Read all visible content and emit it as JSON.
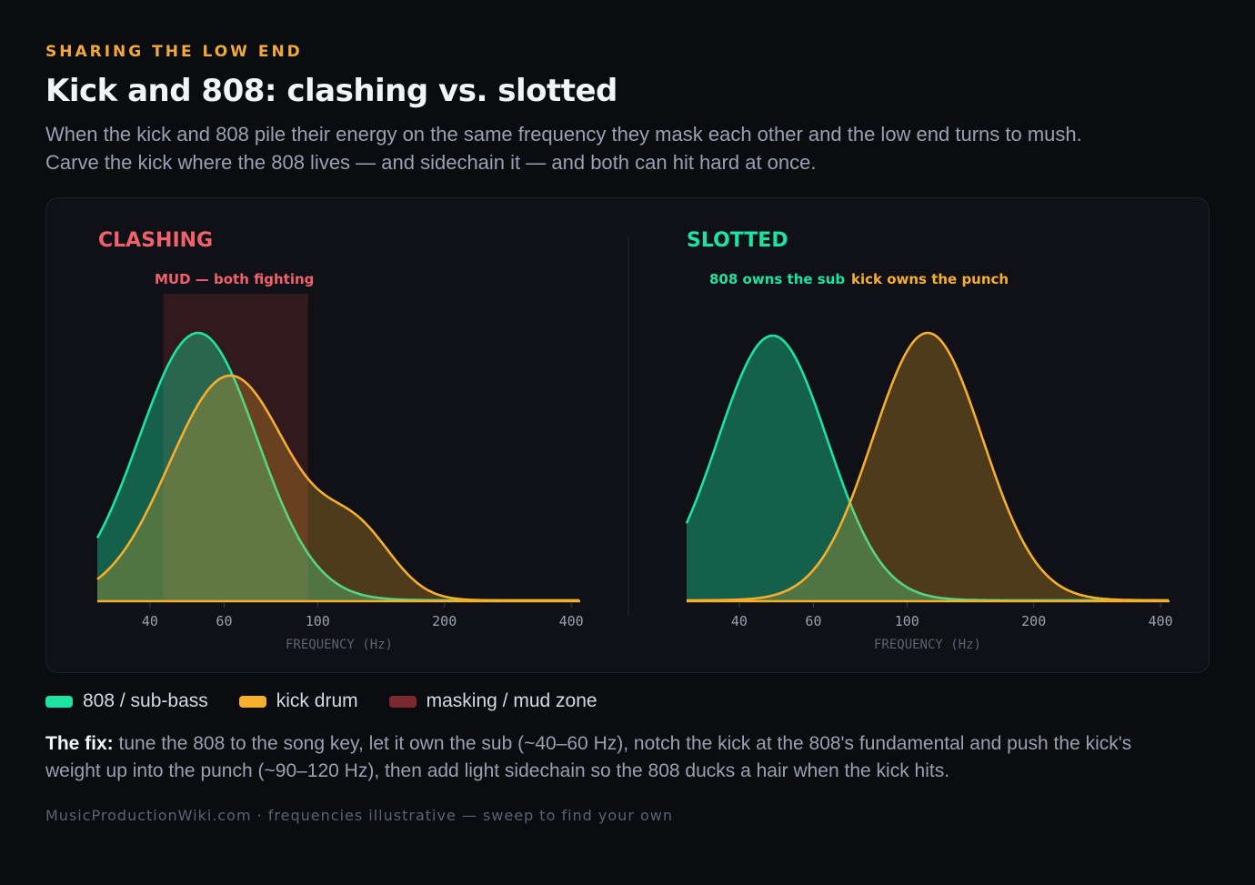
{
  "header": {
    "eyebrow": "SHARING THE LOW END",
    "title": "Kick and 808: clashing vs. slotted",
    "subtitle": "When the kick and 808 pile their energy on the same frequency they mask each other and the low end turns to mush. Carve the kick where the 808 lives — and sidechain it — and both can hit hard at once."
  },
  "colors": {
    "sub": "#1de3a0",
    "kick": "#f6ae2d",
    "mud": "#7a2a2e",
    "clash_heading": "#f0616b",
    "slot_heading": "#1de3a0"
  },
  "chart_data": [
    {
      "type": "area",
      "heading": "CLASHING",
      "annotations": [
        {
          "text": "MUD — both fighting",
          "x_range": [
            43,
            95
          ]
        }
      ],
      "x_axis": {
        "label": "FREQUENCY (Hz)",
        "scale": "log",
        "range": [
          30,
          420
        ],
        "ticks": [
          40,
          60,
          100,
          200,
          400
        ]
      },
      "series": [
        {
          "name": "808 / sub-bass",
          "role": "sub",
          "peaks": [
            {
              "center_hz": 52,
              "height": 1.0,
              "width": 0.14
            }
          ]
        },
        {
          "name": "kick drum",
          "role": "kick",
          "peaks": [
            {
              "center_hz": 62,
              "height": 0.84,
              "width": 0.145
            },
            {
              "center_hz": 125,
              "height": 0.22,
              "width": 0.085
            }
          ]
        }
      ]
    },
    {
      "type": "area",
      "heading": "SLOTTED",
      "annotations": [
        {
          "text": "808 owns the sub",
          "role": "sub"
        },
        {
          "text": "kick owns the punch",
          "role": "kick"
        }
      ],
      "x_axis": {
        "label": "FREQUENCY (Hz)",
        "scale": "log",
        "range": [
          30,
          420
        ],
        "ticks": [
          40,
          60,
          100,
          200,
          400
        ]
      },
      "series": [
        {
          "name": "808 / sub-bass",
          "role": "sub",
          "peaks": [
            {
              "center_hz": 48,
              "height": 0.99,
              "width": 0.13
            }
          ]
        },
        {
          "name": "kick drum",
          "role": "kick",
          "peaks": [
            {
              "center_hz": 112,
              "height": 1.0,
              "width": 0.13
            }
          ]
        }
      ]
    }
  ],
  "legend": [
    {
      "label": "808 / sub-bass",
      "role": "sub"
    },
    {
      "label": "kick drum",
      "role": "kick"
    },
    {
      "label": "masking / mud zone",
      "role": "mud"
    }
  ],
  "fix": {
    "lead": "The fix:",
    "text": "tune the 808 to the song key, let it own the sub (~40–60 Hz), notch the kick at the 808's fundamental and push the kick's weight up into the punch (~90–120 Hz), then add light sidechain so the 808 ducks a hair when the kick hits."
  },
  "footer": "MusicProductionWiki.com · frequencies illustrative — sweep to find your own"
}
